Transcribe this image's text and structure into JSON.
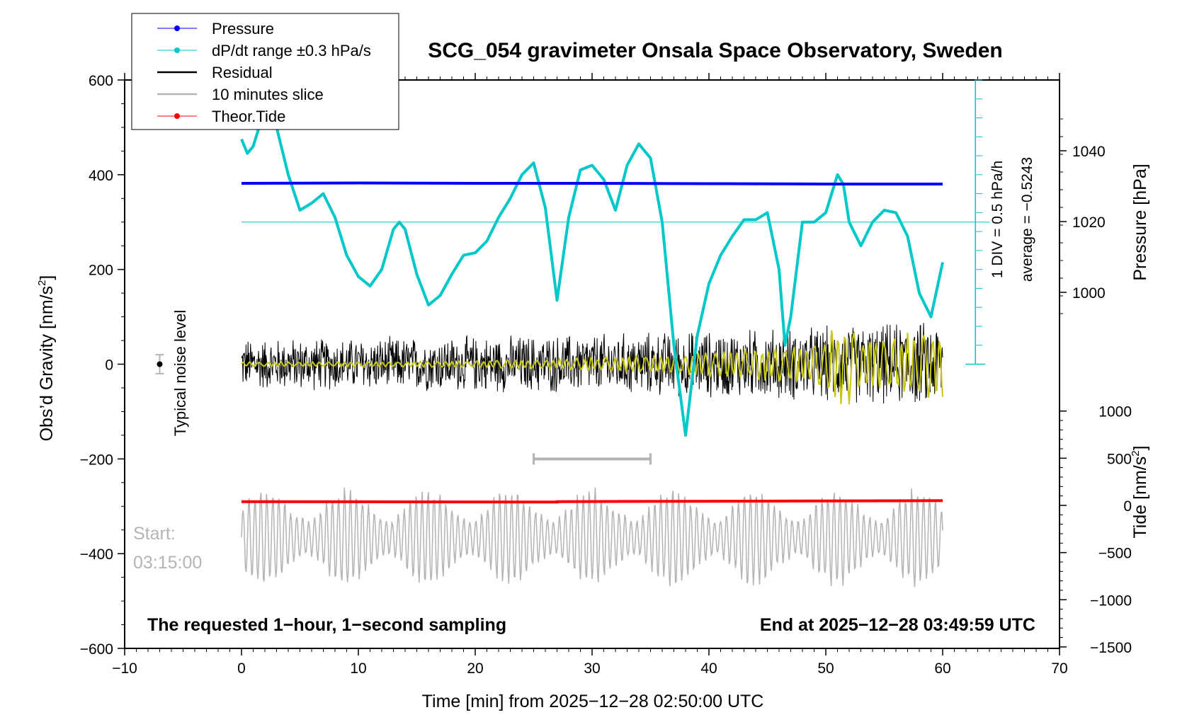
{
  "chart_data": {
    "type": "line",
    "title": "SCG_054 gravimeter Onsala Space Observatory, Sweden",
    "xlabel": "Time [min] from 2025−12−28 02:50:00 UTC",
    "xlim": [
      -10,
      70
    ],
    "x_ticks": [
      "−10",
      "0",
      "10",
      "20",
      "30",
      "40",
      "50",
      "60",
      "70"
    ],
    "left_axis": {
      "label": "Obs’d Gravity [nm/s",
      "label_sup": "2",
      "label_end": "]",
      "range": [
        -600,
        600
      ],
      "ticks": [
        "600",
        "400",
        "200",
        "0",
        "−200",
        "−400",
        "−600"
      ]
    },
    "pressure_axis": {
      "label": "Pressure [hPa]",
      "ticks": [
        "1040",
        "1020",
        "1000"
      ],
      "values": [
        1040,
        1020,
        1000
      ]
    },
    "tide_axis": {
      "label": "Tide [nm/s",
      "label_sup": "2",
      "label_end": "]",
      "ticks": [
        "1000",
        "500",
        "0",
        "−500",
        "−1000",
        "−1500"
      ],
      "values": [
        1000,
        500,
        0,
        -500,
        -1000,
        -1500
      ]
    },
    "legend": [
      {
        "label": "Pressure",
        "color": "#0000ff",
        "marker": true
      },
      {
        "label": "dP/dt range ±0.3 hPa/s",
        "color": "#00c8c8",
        "marker": true
      },
      {
        "label": "Residual",
        "color": "#000000",
        "marker": false
      },
      {
        "label": "10 minutes slice",
        "color": "#b4b4b4",
        "marker": false
      },
      {
        "label": "Theor.Tide",
        "color": "#ff0000",
        "marker": true
      }
    ],
    "annotations": {
      "noise": "Typical noise level",
      "div_line1": "1 DIV = 0.5 hPa/h",
      "div_line2": "average = −0.5243",
      "start_label": "Start:",
      "start_time": "03:15:00",
      "bottom_left": "The requested 1−hour, 1−second sampling",
      "bottom_right": "End at 2025−12−28 03:49:59 UTC"
    },
    "series": [
      {
        "name": "Pressure",
        "axis": "pressure",
        "color": "#0000ff",
        "x": [
          0,
          10,
          20,
          30,
          40,
          50,
          60
        ],
        "values": [
          1030.8,
          1030.9,
          1030.8,
          1030.8,
          1030.7,
          1030.6,
          1030.6
        ]
      },
      {
        "name": "dP/dt",
        "axis": "gravity",
        "color": "#00c8c8",
        "x": [
          0,
          0.5,
          1,
          2,
          3,
          4,
          5,
          6,
          7,
          8,
          9,
          10,
          11,
          12,
          13,
          13.5,
          14,
          15,
          16,
          17,
          18,
          19,
          20,
          21,
          22,
          23,
          24,
          25,
          26,
          27,
          28,
          29,
          30,
          31,
          32,
          33,
          34,
          35,
          36,
          37,
          38,
          39,
          40,
          41,
          42,
          43,
          44,
          45,
          46,
          46.5,
          47,
          48,
          49,
          50,
          51,
          51.5,
          52,
          53,
          54,
          55,
          56,
          57,
          58,
          59,
          60
        ],
        "values": [
          475,
          445,
          460,
          540,
          500,
          400,
          325,
          340,
          360,
          310,
          230,
          185,
          165,
          200,
          285,
          300,
          285,
          190,
          125,
          145,
          190,
          230,
          235,
          260,
          310,
          350,
          400,
          425,
          330,
          135,
          310,
          410,
          420,
          390,
          325,
          420,
          465,
          435,
          300,
          40,
          -150,
          60,
          170,
          230,
          270,
          305,
          305,
          320,
          200,
          40,
          100,
          300,
          300,
          320,
          400,
          380,
          300,
          250,
          300,
          325,
          320,
          270,
          150,
          100,
          215
        ]
      },
      {
        "name": "10 minutes slice range",
        "axis": "gravity",
        "color": "#b4b4b4",
        "x": [
          25,
          35
        ],
        "values": [
          -200,
          -200
        ]
      },
      {
        "name": "Theor.Tide",
        "axis": "tide",
        "color": "#ff0000",
        "x": [
          0,
          27,
          27,
          60
        ],
        "values": [
          40,
          35,
          40,
          50
        ]
      },
      {
        "name": "Residual",
        "axis": "gravity",
        "color": "#000000",
        "x": [
          0,
          60
        ],
        "amplitude": [
          60,
          100
        ],
        "note": "noisy 1-second residual around 0"
      },
      {
        "name": "Residual smoothed",
        "axis": "gravity",
        "color": "#c8c814",
        "x": [
          0,
          60
        ],
        "amplitude": [
          5,
          80
        ]
      },
      {
        "name": "10 minutes slice",
        "axis": "tide",
        "color": "#b4b4b4",
        "x": [
          0,
          60
        ],
        "amplitude": [
          330,
          560
        ]
      }
    ]
  }
}
